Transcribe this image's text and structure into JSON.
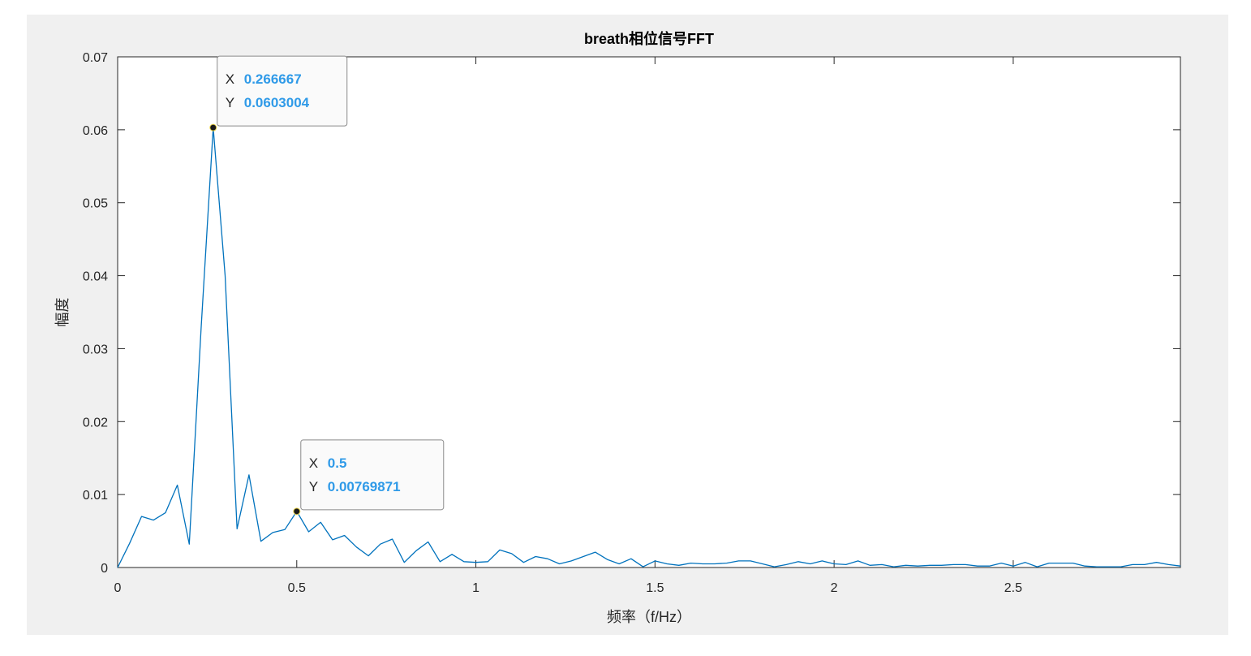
{
  "chart_data": {
    "type": "line",
    "title": "breath相位信号FFT",
    "xlabel": "频率（f/Hz）",
    "ylabel": "幅度",
    "xlim": [
      0,
      2.9667
    ],
    "ylim": [
      0,
      0.07
    ],
    "xticks": [
      0,
      0.5,
      1,
      1.5,
      2,
      2.5
    ],
    "xtick_labels": [
      "0",
      "0.5",
      "1",
      "1.5",
      "2",
      "2.5"
    ],
    "yticks": [
      0,
      0.01,
      0.02,
      0.03,
      0.04,
      0.05,
      0.06,
      0.07
    ],
    "ytick_labels": [
      "0",
      "0.01",
      "0.02",
      "0.03",
      "0.04",
      "0.05",
      "0.06",
      "0.07"
    ],
    "grid": false,
    "line_color": "#0072BD",
    "series": [
      {
        "x": [
          0.0,
          0.0333,
          0.0667,
          0.1,
          0.1333,
          0.1667,
          0.2,
          0.2333,
          0.2667,
          0.3,
          0.3333,
          0.3667,
          0.4,
          0.4333,
          0.4667,
          0.5,
          0.5333,
          0.5667,
          0.6,
          0.6333,
          0.6667,
          0.7,
          0.7333,
          0.7667,
          0.8,
          0.8333,
          0.8667,
          0.9,
          0.9333,
          0.9667,
          1.0,
          1.0333,
          1.0667,
          1.1,
          1.1333,
          1.1667,
          1.2,
          1.2333,
          1.2667,
          1.3,
          1.3333,
          1.3667,
          1.4,
          1.4333,
          1.4667,
          1.5,
          1.5333,
          1.5667,
          1.6,
          1.6333,
          1.6667,
          1.7,
          1.7333,
          1.7667,
          1.8,
          1.8333,
          1.8667,
          1.9,
          1.9333,
          1.9667,
          2.0,
          2.0333,
          2.0667,
          2.1,
          2.1333,
          2.1667,
          2.2,
          2.2333,
          2.2667,
          2.3,
          2.3333,
          2.3667,
          2.4,
          2.4333,
          2.4667,
          2.5,
          2.5333,
          2.5667,
          2.6,
          2.6333,
          2.6667,
          2.7,
          2.7333,
          2.7667,
          2.8,
          2.8333,
          2.8667,
          2.9,
          2.9333,
          2.9667
        ],
        "y": [
          0.0,
          0.0033,
          0.007,
          0.0065,
          0.0075,
          0.0113,
          0.0032,
          0.033,
          0.0603004,
          0.04,
          0.0053,
          0.0127,
          0.0036,
          0.0048,
          0.0052,
          0.00769871,
          0.0049,
          0.0062,
          0.0038,
          0.0044,
          0.0028,
          0.0016,
          0.0032,
          0.0039,
          0.0007,
          0.0023,
          0.0035,
          0.0008,
          0.0018,
          0.0008,
          0.0007,
          0.0008,
          0.0024,
          0.0019,
          0.0007,
          0.0015,
          0.0012,
          0.0005,
          0.0009,
          0.0015,
          0.0021,
          0.0011,
          0.0005,
          0.0012,
          0.0001,
          0.0009,
          0.0005,
          0.0003,
          0.0006,
          0.0005,
          0.0005,
          0.0006,
          0.0009,
          0.0009,
          0.0005,
          0.0001,
          0.0004,
          0.0008,
          0.0005,
          0.0009,
          0.0005,
          0.0004,
          0.0009,
          0.0003,
          0.0004,
          0.0001,
          0.0003,
          0.0002,
          0.0003,
          0.0003,
          0.0004,
          0.0004,
          0.0002,
          0.0002,
          0.0006,
          0.0002,
          0.0007,
          0.0001,
          0.0006,
          0.0006,
          0.0006,
          0.0002,
          0.0001,
          0.0001,
          0.0001,
          0.0004,
          0.0004,
          0.0007,
          0.0004,
          0.0002
        ]
      }
    ],
    "datatips": [
      {
        "x_key": "X",
        "x_value": "0.266667",
        "y_key": "Y",
        "y_value": "0.0603004",
        "x": 0.266667,
        "y": 0.0603004
      },
      {
        "x_key": "X",
        "x_value": "0.5",
        "y_key": "Y",
        "y_value": "0.00769871",
        "x": 0.5,
        "y": 0.00769871
      }
    ],
    "datatip_value_color": "#2f9ae8"
  }
}
